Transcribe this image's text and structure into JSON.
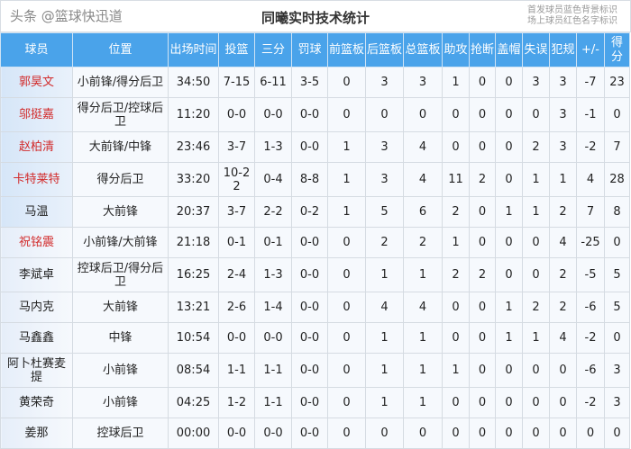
{
  "title": "同曦实时技术统计",
  "legend": [
    "首发球员蓝色背景标识",
    "场上球员红色名字标识"
  ],
  "colors": {
    "header": "#4aa3ea",
    "oncourt_name": "#d22c2c"
  },
  "columns": [
    "球员",
    "位置",
    "出场时间",
    "投篮",
    "三分",
    "罚球",
    "前篮板",
    "后篮板",
    "总篮板",
    "助攻",
    "抢断",
    "盖帽",
    "失误",
    "犯规",
    "+/-",
    "得分"
  ],
  "rows": [
    {
      "starter": true,
      "oncourt": true,
      "cells": [
        "郭昊文",
        "小前锋/得分后卫",
        "34:50",
        "7-15",
        "6-11",
        "3-5",
        "0",
        "3",
        "3",
        "1",
        "0",
        "0",
        "3",
        "3",
        "-7",
        "23"
      ]
    },
    {
      "starter": true,
      "oncourt": true,
      "cells": [
        "邬挺嘉",
        "得分后卫/控球后卫",
        "11:20",
        "0-0",
        "0-0",
        "0-0",
        "0",
        "0",
        "0",
        "0",
        "0",
        "0",
        "0",
        "3",
        "-1",
        "0"
      ]
    },
    {
      "starter": true,
      "oncourt": true,
      "cells": [
        "赵柏清",
        "大前锋/中锋",
        "23:46",
        "3-7",
        "1-3",
        "0-0",
        "1",
        "3",
        "4",
        "0",
        "0",
        "0",
        "2",
        "3",
        "-2",
        "7"
      ]
    },
    {
      "starter": true,
      "oncourt": true,
      "cells": [
        "卡特莱特",
        "得分后卫",
        "33:20",
        "10-22",
        "0-4",
        "8-8",
        "1",
        "3",
        "4",
        "11",
        "2",
        "0",
        "1",
        "1",
        "4",
        "28"
      ]
    },
    {
      "starter": true,
      "oncourt": false,
      "cells": [
        "马温",
        "大前锋",
        "20:37",
        "3-7",
        "2-2",
        "0-2",
        "1",
        "5",
        "6",
        "2",
        "0",
        "1",
        "1",
        "2",
        "7",
        "8"
      ]
    },
    {
      "starter": false,
      "oncourt": true,
      "cells": [
        "祝铭震",
        "小前锋/大前锋",
        "21:18",
        "0-1",
        "0-1",
        "0-0",
        "0",
        "2",
        "2",
        "1",
        "0",
        "0",
        "0",
        "4",
        "-25",
        "0"
      ]
    },
    {
      "starter": false,
      "oncourt": false,
      "cells": [
        "李斌卓",
        "控球后卫/得分后卫",
        "16:25",
        "2-4",
        "1-3",
        "0-0",
        "0",
        "1",
        "1",
        "2",
        "2",
        "0",
        "0",
        "2",
        "-5",
        "5"
      ]
    },
    {
      "starter": false,
      "oncourt": false,
      "cells": [
        "马内克",
        "大前锋",
        "13:21",
        "2-6",
        "1-4",
        "0-0",
        "0",
        "4",
        "4",
        "0",
        "0",
        "1",
        "2",
        "2",
        "-6",
        "5"
      ]
    },
    {
      "starter": false,
      "oncourt": false,
      "cells": [
        "马鑫鑫",
        "中锋",
        "10:54",
        "0-0",
        "0-0",
        "0-0",
        "0",
        "1",
        "1",
        "0",
        "0",
        "1",
        "1",
        "4",
        "-2",
        "0"
      ]
    },
    {
      "starter": false,
      "oncourt": false,
      "cells": [
        "阿卜杜赛麦提",
        "小前锋",
        "08:54",
        "1-1",
        "1-1",
        "0-0",
        "0",
        "1",
        "1",
        "1",
        "0",
        "0",
        "0",
        "0",
        "-6",
        "3"
      ]
    },
    {
      "starter": false,
      "oncourt": false,
      "cells": [
        "黄荣奇",
        "小前锋",
        "04:25",
        "1-2",
        "1-1",
        "0-0",
        "0",
        "1",
        "1",
        "0",
        "0",
        "0",
        "0",
        "0",
        "-2",
        "3"
      ]
    },
    {
      "starter": false,
      "oncourt": false,
      "cells": [
        "姜那",
        "控球后卫",
        "00:00",
        "0-0",
        "0-0",
        "0-0",
        "0",
        "0",
        "0",
        "0",
        "0",
        "0",
        "0",
        "0",
        "0",
        "0"
      ]
    }
  ],
  "watermark": "头条 @篮球快迅道"
}
